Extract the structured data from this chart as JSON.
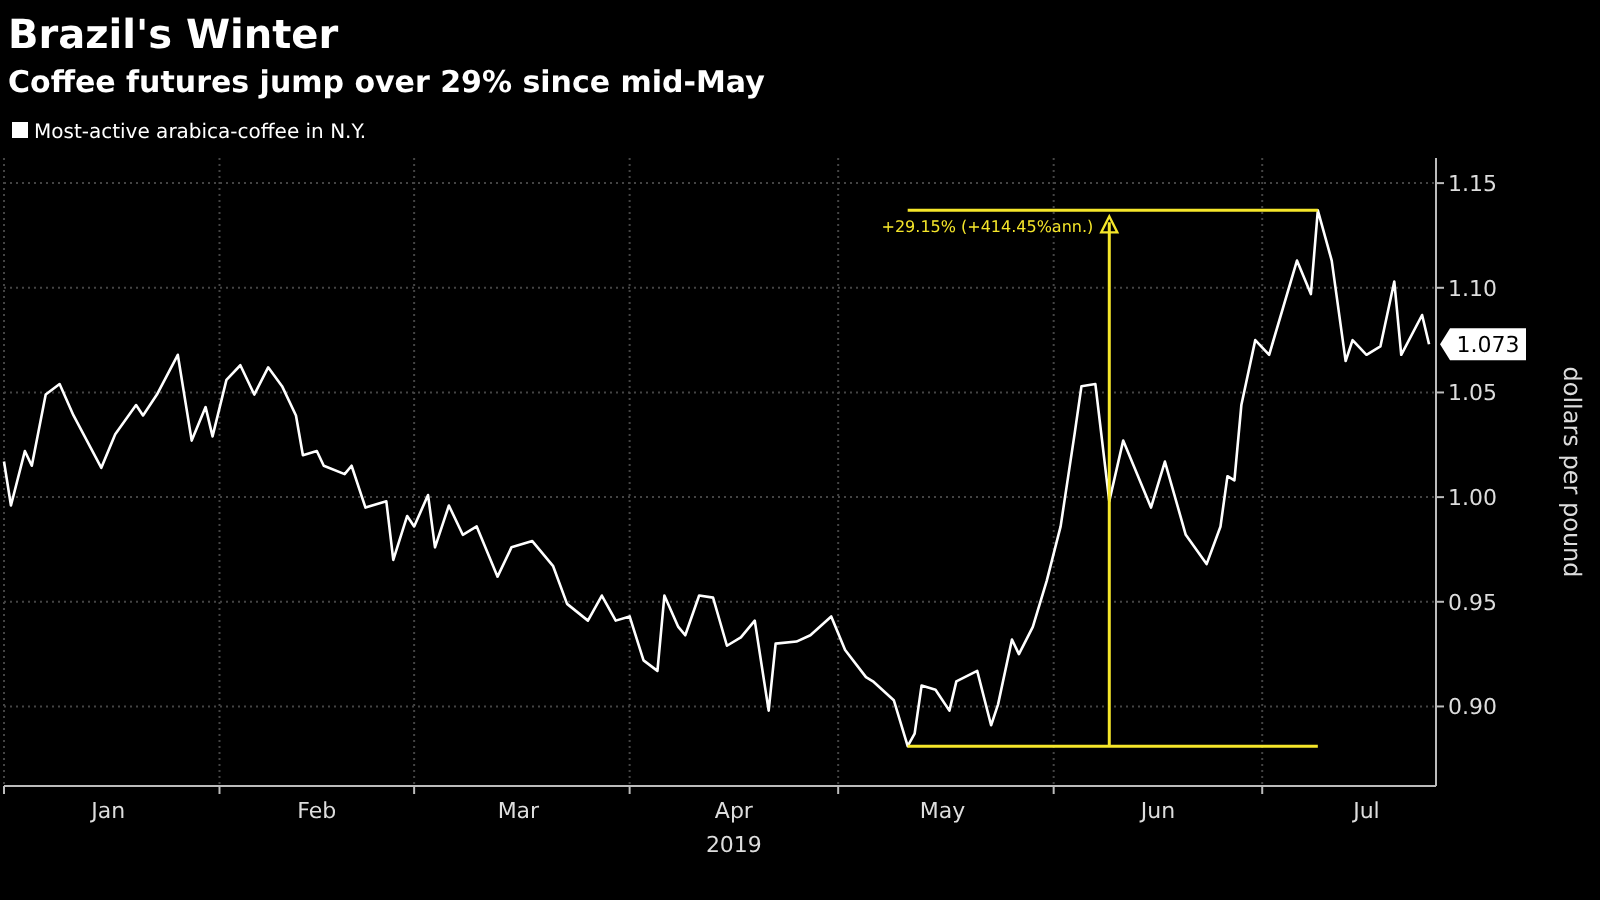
{
  "chart_data": {
    "type": "line",
    "title": "Brazil's Winter",
    "subtitle": "Coffee futures jump over 29% since mid-May",
    "ylabel": "dollars per pound",
    "xlabel": "2019",
    "x": [
      "2019-01-01",
      "2019-01-02",
      "2019-01-04",
      "2019-01-05",
      "2019-01-07",
      "2019-01-09",
      "2019-01-11",
      "2019-01-15",
      "2019-01-17",
      "2019-01-20",
      "2019-01-21",
      "2019-01-23",
      "2019-01-26",
      "2019-01-28",
      "2019-01-30",
      "2019-01-31",
      "2019-02-02",
      "2019-02-04",
      "2019-02-06",
      "2019-02-08",
      "2019-02-10",
      "2019-02-12",
      "2019-02-13",
      "2019-02-15",
      "2019-02-16",
      "2019-02-19",
      "2019-02-20",
      "2019-02-22",
      "2019-02-25",
      "2019-02-26",
      "2019-02-28",
      "2019-03-01",
      "2019-03-03",
      "2019-03-04",
      "2019-03-06",
      "2019-03-08",
      "2019-03-10",
      "2019-03-13",
      "2019-03-15",
      "2019-03-18",
      "2019-03-21",
      "2019-03-23",
      "2019-03-26",
      "2019-03-28",
      "2019-03-30",
      "2019-04-01",
      "2019-04-03",
      "2019-04-05",
      "2019-04-06",
      "2019-04-08",
      "2019-04-09",
      "2019-04-11",
      "2019-04-13",
      "2019-04-15",
      "2019-04-17",
      "2019-04-19",
      "2019-04-21",
      "2019-04-22",
      "2019-04-25",
      "2019-04-27",
      "2019-04-30",
      "2019-05-02",
      "2019-05-05",
      "2019-05-06",
      "2019-05-09",
      "2019-05-11",
      "2019-05-12",
      "2019-05-13",
      "2019-05-15",
      "2019-05-17",
      "2019-05-18",
      "2019-05-21",
      "2019-05-23",
      "2019-05-24",
      "2019-05-26",
      "2019-05-27",
      "2019-05-29",
      "2019-05-31",
      "2019-06-02",
      "2019-06-04",
      "2019-06-05",
      "2019-06-07",
      "2019-06-09",
      "2019-06-11",
      "2019-06-13",
      "2019-06-15",
      "2019-06-17",
      "2019-06-20",
      "2019-06-23",
      "2019-06-25",
      "2019-06-26",
      "2019-06-27",
      "2019-06-28",
      "2019-06-30",
      "2019-07-02",
      "2019-07-06",
      "2019-07-08",
      "2019-07-09",
      "2019-07-11",
      "2019-07-13",
      "2019-07-14",
      "2019-07-16",
      "2019-07-18",
      "2019-07-20",
      "2019-07-21",
      "2019-07-24",
      "2019-07-25"
    ],
    "series": [
      {
        "name": "Most-active arabica-coffee in N.Y.",
        "color": "#ffffff",
        "values": [
          1.017,
          0.996,
          1.022,
          1.015,
          1.049,
          1.054,
          1.039,
          1.014,
          1.03,
          1.044,
          1.039,
          1.049,
          1.068,
          1.027,
          1.043,
          1.029,
          1.056,
          1.063,
          1.049,
          1.062,
          1.053,
          1.039,
          1.02,
          1.022,
          1.015,
          1.011,
          1.015,
          0.995,
          0.998,
          0.97,
          0.991,
          0.986,
          1.001,
          0.976,
          0.996,
          0.982,
          0.986,
          0.962,
          0.976,
          0.979,
          0.967,
          0.949,
          0.941,
          0.953,
          0.941,
          0.943,
          0.922,
          0.917,
          0.953,
          0.938,
          0.934,
          0.953,
          0.952,
          0.929,
          0.933,
          0.941,
          0.898,
          0.93,
          0.931,
          0.934,
          0.943,
          0.927,
          0.914,
          0.912,
          0.903,
          0.881,
          0.887,
          0.91,
          0.908,
          0.898,
          0.912,
          0.917,
          0.891,
          0.901,
          0.932,
          0.925,
          0.938,
          0.96,
          0.986,
          1.03,
          1.053,
          1.054,
          0.998,
          1.027,
          1.011,
          0.995,
          1.017,
          0.982,
          0.968,
          0.986,
          1.01,
          1.008,
          1.044,
          1.075,
          1.068,
          1.113,
          1.097,
          1.137,
          1.113,
          1.065,
          1.075,
          1.068,
          1.072,
          1.103,
          1.068,
          1.087,
          1.073
        ],
        "value_labels": [
          null,
          null,
          null,
          null,
          null,
          null,
          null,
          null,
          null,
          null,
          null,
          null,
          null,
          null,
          null,
          null,
          null,
          null,
          null,
          null,
          null,
          null,
          null,
          null,
          null,
          null,
          null,
          null,
          null,
          null,
          null,
          null,
          null,
          null,
          null,
          null,
          null,
          null,
          null,
          null,
          null,
          null,
          null,
          null,
          null,
          null,
          null,
          null,
          null,
          null,
          null,
          null,
          null,
          null,
          null,
          null,
          null,
          null,
          null,
          null,
          null,
          null,
          null,
          null,
          null,
          null,
          null,
          null,
          null,
          null,
          null,
          null,
          null,
          null,
          null,
          null,
          null,
          null,
          null,
          null,
          null,
          null,
          null,
          null,
          null,
          null,
          null,
          null,
          null,
          null,
          null,
          null,
          null,
          null,
          null,
          null,
          null,
          null,
          null,
          null,
          null,
          null,
          null,
          null,
          null,
          null,
          "1.073"
        ]
      }
    ],
    "xlim": [
      "2019-01-01",
      "2019-07-26"
    ],
    "xticks": [
      {
        "value": "2019-01-01",
        "label": null
      },
      {
        "value": "2019-01-16",
        "label": "Jan"
      },
      {
        "value": "2019-02-01",
        "label": null
      },
      {
        "value": "2019-02-15",
        "label": "Feb"
      },
      {
        "value": "2019-03-01",
        "label": null
      },
      {
        "value": "2019-03-16",
        "label": "Mar"
      },
      {
        "value": "2019-04-01",
        "label": null
      },
      {
        "value": "2019-04-16",
        "label": "Apr"
      },
      {
        "value": "2019-05-01",
        "label": null
      },
      {
        "value": "2019-05-16",
        "label": "May"
      },
      {
        "value": "2019-06-01",
        "label": null
      },
      {
        "value": "2019-06-16",
        "label": "Jun"
      },
      {
        "value": "2019-07-01",
        "label": null
      },
      {
        "value": "2019-07-16",
        "label": "Jul"
      }
    ],
    "ylim": [
      0.862,
      1.162
    ],
    "yticks": [
      {
        "value": 0.9,
        "label": "0.90"
      },
      {
        "value": 0.95,
        "label": "0.95"
      },
      {
        "value": 1.0,
        "label": "1.00"
      },
      {
        "value": 1.05,
        "label": "1.05"
      },
      {
        "value": 1.1,
        "label": "1.10"
      },
      {
        "value": 1.15,
        "label": "1.15"
      }
    ],
    "grid": true,
    "legend": "top left",
    "marker": "none",
    "line_style": "solid",
    "ref_lines": [
      {
        "axis": "x",
        "value": "2019-06-09",
        "color": "#f5e62a"
      }
    ],
    "annotations": [
      {
        "text": "+29.15% (+414.45%ann.)",
        "x": "2019-07-09",
        "y": 1.137
      }
    ]
  }
}
